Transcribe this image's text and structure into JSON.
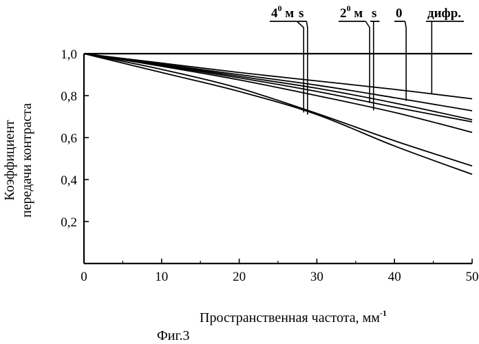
{
  "chart_data": {
    "type": "line",
    "xlabel": "Пространственная частота, мм",
    "xlabel_sup": "-1",
    "ylabel": [
      "Коэффициент",
      "передачи контраста"
    ],
    "caption": "Фиг.3",
    "xlim": [
      0,
      50
    ],
    "ylim": [
      0,
      1.0
    ],
    "xticks": [
      0,
      10,
      20,
      30,
      40,
      50
    ],
    "xtick_labels": [
      "0",
      "10",
      "20",
      "30",
      "40",
      "50"
    ],
    "yticks": [
      0.2,
      0.4,
      0.6,
      0.8,
      1.0
    ],
    "ytick_labels": [
      "0,2",
      "0,4",
      "0,6",
      "0,8",
      "1,0"
    ],
    "grid": false,
    "series": [
      {
        "x": [
          0,
          10,
          20,
          30,
          40,
          50
        ],
        "values": [
          1.0,
          1.0,
          1.0,
          1.0,
          1.0,
          1.0
        ]
      },
      {
        "x": [
          0,
          10,
          20,
          30,
          40,
          50
        ],
        "values": [
          1.0,
          0.955,
          0.91,
          0.87,
          0.83,
          0.785
        ]
      },
      {
        "x": [
          0,
          10,
          20,
          30,
          40,
          50
        ],
        "values": [
          1.0,
          0.95,
          0.9,
          0.85,
          0.79,
          0.728
        ]
      },
      {
        "x": [
          0,
          10,
          20,
          30,
          40,
          50
        ],
        "values": [
          1.0,
          0.948,
          0.892,
          0.835,
          0.765,
          0.685
        ]
      },
      {
        "x": [
          0,
          10,
          20,
          30,
          40,
          50
        ],
        "values": [
          1.0,
          0.945,
          0.885,
          0.82,
          0.745,
          0.675
        ]
      },
      {
        "x": [
          0,
          10,
          20,
          30,
          40,
          50
        ],
        "values": [
          1.0,
          0.94,
          0.875,
          0.8,
          0.72,
          0.625
        ]
      },
      {
        "x": [
          0,
          10,
          20,
          30,
          40,
          50
        ],
        "values": [
          1.0,
          0.925,
          0.835,
          0.715,
          0.585,
          0.465
        ]
      },
      {
        "x": [
          0,
          10,
          20,
          30,
          40,
          50
        ],
        "values": [
          1.0,
          0.91,
          0.82,
          0.71,
          0.56,
          0.425
        ]
      }
    ],
    "annotations": [
      {
        "text": "4",
        "sup": "0",
        "suffix": " м",
        "line_x": 28.3,
        "line_y": 0.72
      },
      {
        "text": "s",
        "line_x": 28.8,
        "line_y": 0.71
      },
      {
        "text": "2",
        "sup": "0",
        "suffix": " м",
        "line_x": 36.8,
        "line_y": 0.765
      },
      {
        "text": "s",
        "line_x": 37.3,
        "line_y": 0.73
      },
      {
        "text": "0",
        "line_x": 41.5,
        "line_y": 0.775
      },
      {
        "text": "дифр.",
        "line_x": 44.8,
        "line_y": 0.81
      }
    ]
  }
}
